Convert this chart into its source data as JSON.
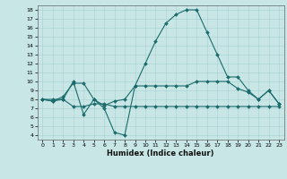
{
  "title": "",
  "xlabel": "Humidex (Indice chaleur)",
  "ylabel": "",
  "background_color": "#c8e6e6",
  "line_color": "#1a6b6b",
  "xlim": [
    -0.5,
    23.5
  ],
  "ylim": [
    3.5,
    18.5
  ],
  "xticks": [
    0,
    1,
    2,
    3,
    4,
    5,
    6,
    7,
    8,
    9,
    10,
    11,
    12,
    13,
    14,
    15,
    16,
    17,
    18,
    19,
    20,
    21,
    22,
    23
  ],
  "yticks": [
    4,
    5,
    6,
    7,
    8,
    9,
    10,
    11,
    12,
    13,
    14,
    15,
    16,
    17,
    18
  ],
  "line1_x": [
    0,
    1,
    2,
    3,
    4,
    5,
    6,
    7,
    8,
    9,
    10,
    11,
    12,
    13,
    14,
    15,
    16,
    17,
    18,
    19,
    20,
    21,
    22,
    23
  ],
  "line1_y": [
    8.0,
    7.8,
    8.0,
    10.0,
    6.3,
    8.0,
    7.0,
    4.3,
    4.0,
    9.5,
    12.0,
    14.5,
    16.5,
    17.5,
    18.0,
    18.0,
    15.5,
    13.0,
    10.5,
    10.5,
    9.0,
    8.0,
    9.0,
    7.5
  ],
  "line2_x": [
    0,
    1,
    2,
    3,
    4,
    5,
    6,
    7,
    8,
    9,
    10,
    11,
    12,
    13,
    14,
    15,
    16,
    17,
    18,
    19,
    20,
    21,
    22,
    23
  ],
  "line2_y": [
    8.0,
    7.8,
    8.3,
    9.8,
    9.8,
    8.0,
    7.3,
    7.8,
    8.0,
    9.5,
    9.5,
    9.5,
    9.5,
    9.5,
    9.5,
    10.0,
    10.0,
    10.0,
    10.0,
    9.2,
    8.8,
    8.0,
    9.0,
    7.5
  ],
  "line3_x": [
    0,
    1,
    2,
    3,
    4,
    5,
    6,
    7,
    8,
    9,
    10,
    11,
    12,
    13,
    14,
    15,
    16,
    17,
    18,
    19,
    20,
    21,
    22,
    23
  ],
  "line3_y": [
    8.0,
    8.0,
    8.0,
    7.2,
    7.2,
    7.5,
    7.5,
    7.2,
    7.2,
    7.2,
    7.2,
    7.2,
    7.2,
    7.2,
    7.2,
    7.2,
    7.2,
    7.2,
    7.2,
    7.2,
    7.2,
    7.2,
    7.2,
    7.2
  ]
}
